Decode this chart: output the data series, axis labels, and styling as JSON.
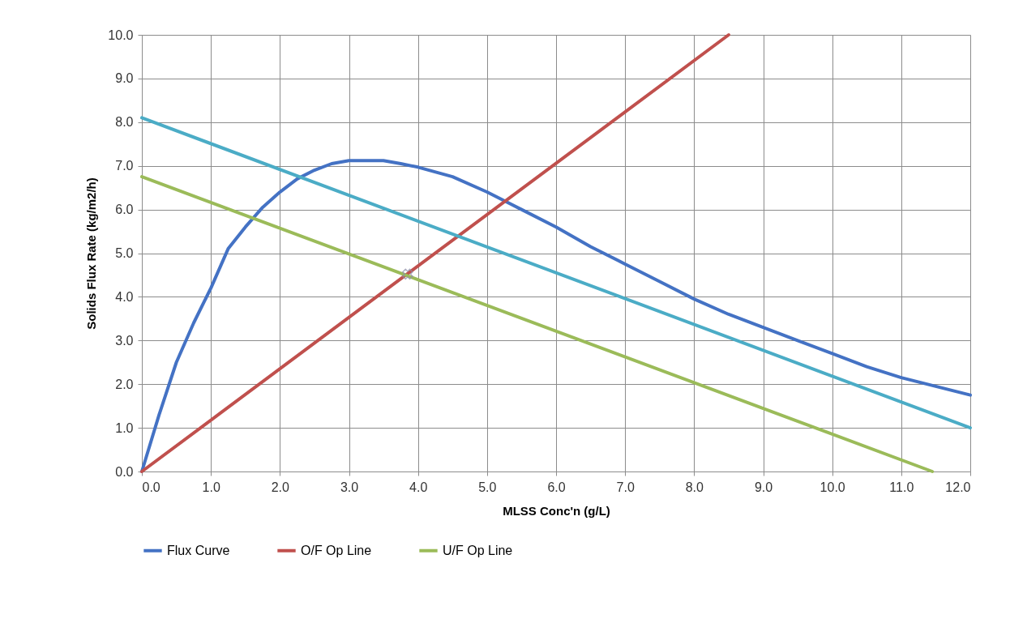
{
  "chart_data": {
    "type": "line",
    "xlabel": "MLSS Conc'n (g/L)",
    "ylabel": "Solids Flux Rate (kg/m2/h)",
    "xlim": [
      0,
      12
    ],
    "ylim": [
      0,
      10
    ],
    "xticks": [
      {
        "value": 0,
        "label": "0.0"
      },
      {
        "value": 1,
        "label": "1.0"
      },
      {
        "value": 2,
        "label": "2.0"
      },
      {
        "value": 3,
        "label": "3.0"
      },
      {
        "value": 4,
        "label": "4.0"
      },
      {
        "value": 5,
        "label": "5.0"
      },
      {
        "value": 6,
        "label": "6.0"
      },
      {
        "value": 7,
        "label": "7.0"
      },
      {
        "value": 8,
        "label": "8.0"
      },
      {
        "value": 9,
        "label": "9.0"
      },
      {
        "value": 10,
        "label": "10.0"
      },
      {
        "value": 11,
        "label": "11.0"
      },
      {
        "value": 12,
        "label": "12.0"
      }
    ],
    "yticks": [
      {
        "value": 0,
        "label": "0.0"
      },
      {
        "value": 1,
        "label": "1.0"
      },
      {
        "value": 2,
        "label": "2.0"
      },
      {
        "value": 3,
        "label": "3.0"
      },
      {
        "value": 4,
        "label": "4.0"
      },
      {
        "value": 5,
        "label": "5.0"
      },
      {
        "value": 6,
        "label": "6.0"
      },
      {
        "value": 7,
        "label": "7.0"
      },
      {
        "value": 8,
        "label": "8.0"
      },
      {
        "value": 9,
        "label": "9.0"
      },
      {
        "value": 10,
        "label": "10.0"
      }
    ],
    "grid": true,
    "legend": "bottom",
    "line_style": "solid",
    "series": [
      {
        "name": "Flux Curve",
        "color": "#4472c4",
        "x": [
          0,
          0.25,
          0.5,
          0.75,
          1.0,
          1.25,
          1.5,
          1.75,
          2.0,
          2.25,
          2.5,
          2.75,
          3.0,
          3.5,
          3.75,
          4.0,
          4.5,
          5.0,
          5.5,
          6.0,
          6.5,
          7.0,
          7.5,
          8.0,
          8.5,
          9.0,
          9.5,
          10.0,
          10.5,
          11.0,
          11.5,
          12.0
        ],
        "values": [
          0,
          1.3,
          2.5,
          3.4,
          4.2,
          5.1,
          5.6,
          6.05,
          6.4,
          6.7,
          6.9,
          7.05,
          7.12,
          7.12,
          7.05,
          6.97,
          6.75,
          6.4,
          6.0,
          5.6,
          5.15,
          4.75,
          4.35,
          3.95,
          3.6,
          3.3,
          3.0,
          2.7,
          2.4,
          2.15,
          1.95,
          1.75
        ]
      },
      {
        "name": "O/F Op Line",
        "color": "#c0504d",
        "x": [
          0,
          8.5
        ],
        "values": [
          0,
          10
        ]
      },
      {
        "name": "U/F Op Line",
        "color": "#9bbb59",
        "x": [
          0,
          11.45
        ],
        "values": [
          6.75,
          0
        ]
      },
      {
        "color": "#4bacc6",
        "x": [
          0,
          12
        ],
        "values": [
          8.1,
          1.0
        ]
      },
      {
        "type": "scatter",
        "marker": "cross",
        "color": "#8e8ea8",
        "x": [
          3.85
        ],
        "values": [
          4.52
        ]
      }
    ]
  }
}
